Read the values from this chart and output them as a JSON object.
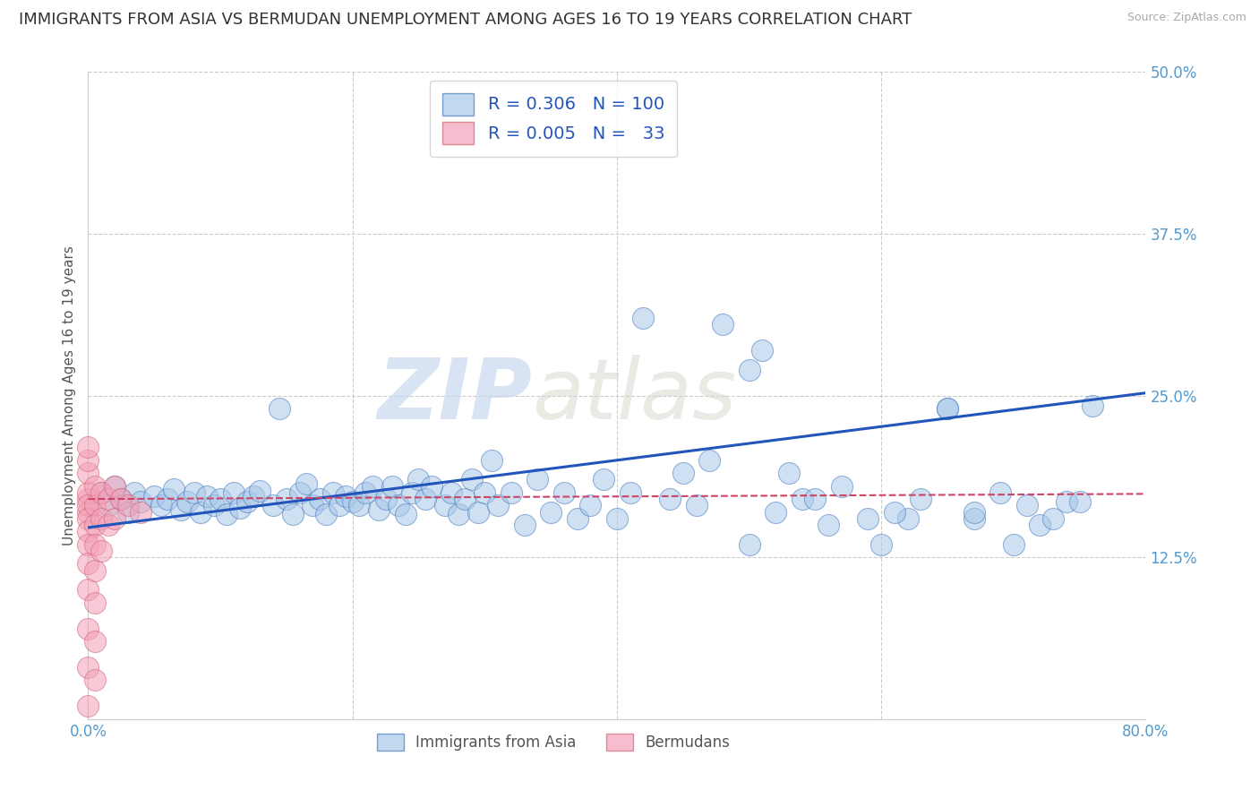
{
  "title": "IMMIGRANTS FROM ASIA VS BERMUDAN UNEMPLOYMENT AMONG AGES 16 TO 19 YEARS CORRELATION CHART",
  "source": "Source: ZipAtlas.com",
  "xlabel": "",
  "ylabel": "Unemployment Among Ages 16 to 19 years",
  "legend_label_1": "Immigrants from Asia",
  "legend_label_2": "Bermudans",
  "R1": "0.306",
  "N1": "100",
  "R2": "0.005",
  "N2": "33",
  "color_blue": "#a8c8e8",
  "color_pink": "#f4a0b8",
  "color_blue_dark": "#4a7cc0",
  "color_pink_dark": "#d06878",
  "color_blue_line": "#2255bb",
  "color_pink_line": "#cc4466",
  "xlim": [
    -0.005,
    0.805
  ],
  "ylim": [
    -0.03,
    0.52
  ],
  "plot_xlim": [
    0.0,
    0.8
  ],
  "plot_ylim": [
    0.0,
    0.5
  ],
  "xticks": [
    0.0,
    0.2,
    0.4,
    0.6,
    0.8
  ],
  "xticklabels": [
    "0.0%",
    "",
    "",
    "",
    "80.0%"
  ],
  "yticks": [
    0.0,
    0.125,
    0.25,
    0.375,
    0.5
  ],
  "yticklabels": [
    "",
    "12.5%",
    "25.0%",
    "37.5%",
    "50.0%"
  ],
  "blue_x": [
    0.01,
    0.015,
    0.02,
    0.025,
    0.03,
    0.035,
    0.04,
    0.05,
    0.055,
    0.06,
    0.065,
    0.07,
    0.075,
    0.08,
    0.085,
    0.09,
    0.095,
    0.1,
    0.105,
    0.11,
    0.115,
    0.12,
    0.125,
    0.13,
    0.14,
    0.145,
    0.15,
    0.155,
    0.16,
    0.165,
    0.17,
    0.175,
    0.18,
    0.185,
    0.19,
    0.195,
    0.2,
    0.205,
    0.21,
    0.215,
    0.22,
    0.225,
    0.23,
    0.235,
    0.24,
    0.245,
    0.25,
    0.255,
    0.26,
    0.27,
    0.275,
    0.28,
    0.285,
    0.29,
    0.295,
    0.3,
    0.305,
    0.31,
    0.32,
    0.33,
    0.34,
    0.35,
    0.36,
    0.37,
    0.38,
    0.39,
    0.4,
    0.41,
    0.42,
    0.44,
    0.45,
    0.46,
    0.47,
    0.48,
    0.5,
    0.52,
    0.54,
    0.56,
    0.6,
    0.62,
    0.65,
    0.67,
    0.7,
    0.72,
    0.74,
    0.76,
    0.5,
    0.51,
    0.53,
    0.55,
    0.57,
    0.59,
    0.61,
    0.63,
    0.65,
    0.67,
    0.69,
    0.71,
    0.73,
    0.75
  ],
  "blue_y": [
    0.175,
    0.165,
    0.18,
    0.17,
    0.16,
    0.175,
    0.168,
    0.172,
    0.165,
    0.17,
    0.178,
    0.162,
    0.168,
    0.175,
    0.16,
    0.172,
    0.165,
    0.17,
    0.158,
    0.175,
    0.163,
    0.168,
    0.172,
    0.176,
    0.165,
    0.24,
    0.17,
    0.158,
    0.175,
    0.182,
    0.165,
    0.17,
    0.158,
    0.175,
    0.165,
    0.172,
    0.168,
    0.165,
    0.175,
    0.18,
    0.162,
    0.17,
    0.18,
    0.165,
    0.158,
    0.175,
    0.185,
    0.17,
    0.18,
    0.165,
    0.175,
    0.158,
    0.17,
    0.185,
    0.16,
    0.175,
    0.2,
    0.165,
    0.175,
    0.15,
    0.185,
    0.16,
    0.175,
    0.155,
    0.165,
    0.185,
    0.155,
    0.175,
    0.31,
    0.17,
    0.19,
    0.165,
    0.2,
    0.305,
    0.135,
    0.16,
    0.17,
    0.15,
    0.135,
    0.155,
    0.24,
    0.155,
    0.135,
    0.15,
    0.168,
    0.242,
    0.27,
    0.285,
    0.19,
    0.17,
    0.18,
    0.155,
    0.16,
    0.17,
    0.24,
    0.16,
    0.175,
    0.165,
    0.155,
    0.168
  ],
  "pink_x": [
    0.0,
    0.0,
    0.0,
    0.0,
    0.0,
    0.0,
    0.0,
    0.0,
    0.0,
    0.0,
    0.0,
    0.0,
    0.0,
    0.0,
    0.0,
    0.005,
    0.005,
    0.005,
    0.005,
    0.005,
    0.005,
    0.005,
    0.005,
    0.01,
    0.01,
    0.01,
    0.015,
    0.015,
    0.02,
    0.02,
    0.025,
    0.03,
    0.04
  ],
  "pink_y": [
    0.17,
    0.16,
    0.175,
    0.19,
    0.2,
    0.21,
    0.165,
    0.155,
    0.145,
    0.135,
    0.12,
    0.1,
    0.07,
    0.04,
    0.01,
    0.18,
    0.165,
    0.15,
    0.135,
    0.115,
    0.09,
    0.06,
    0.03,
    0.175,
    0.155,
    0.13,
    0.17,
    0.15,
    0.18,
    0.155,
    0.17,
    0.165,
    0.16
  ],
  "blue_trend_x": [
    0.0,
    0.8
  ],
  "blue_trend_y": [
    0.148,
    0.252
  ],
  "pink_trend_x": [
    0.0,
    0.8
  ],
  "pink_trend_y": [
    0.17,
    0.174
  ],
  "watermark_zip": "ZIP",
  "watermark_atlas": "atlas",
  "bg_color": "#ffffff",
  "grid_color": "#cccccc",
  "title_fontsize": 13,
  "axis_label_fontsize": 11,
  "tick_fontsize": 12,
  "marker_size": 300
}
